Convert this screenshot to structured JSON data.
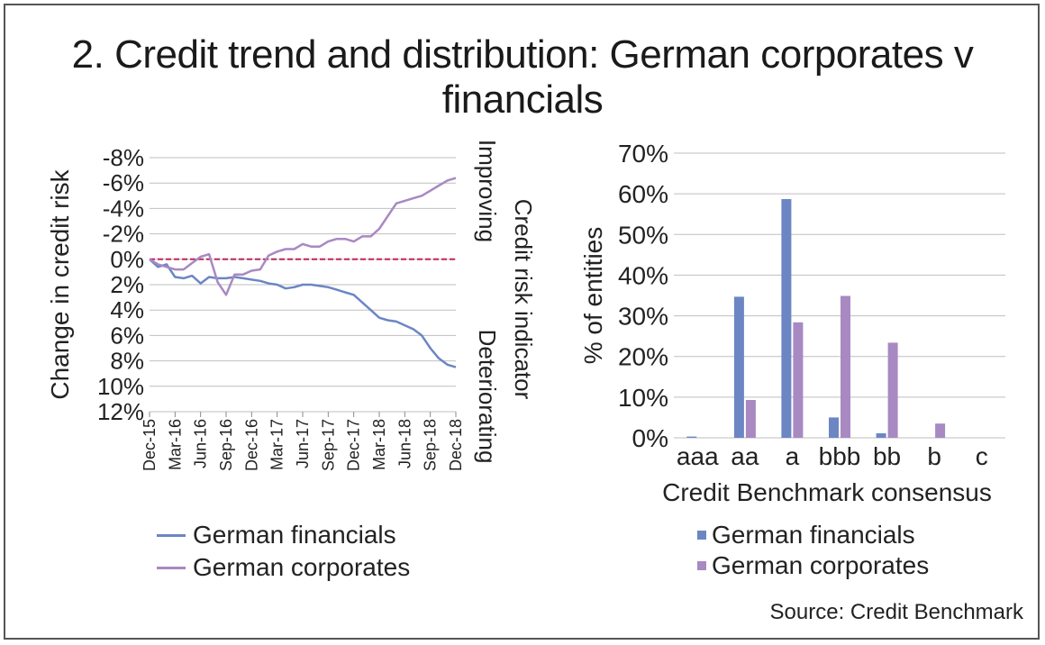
{
  "title": "2. Credit trend and distribution: German corporates v financials",
  "source": "Source: Credit Benchmark",
  "colors": {
    "financials": "#6c86c4",
    "corporates": "#a889c2",
    "zero_line": "#c0245d",
    "grid": "#bfbfbf"
  },
  "chart_data": [
    {
      "type": "line",
      "ylabel": "Change in credit risk",
      "right_label_top": "Improving",
      "right_label_center": "Credit risk indicator",
      "right_label_bottom": "Deteriorating",
      "ylim": [
        -8,
        12
      ],
      "y_inverted": true,
      "ytick_labels": [
        "-8%",
        "-6%",
        "-4%",
        "-2%",
        "0%",
        "2%",
        "4%",
        "6%",
        "8%",
        "10%",
        "12%"
      ],
      "xtick_labels": [
        "Dec-15",
        "Mar-16",
        "Jun-16",
        "Sep-16",
        "Dec-16",
        "Mar-17",
        "Jun-17",
        "Sep-17",
        "Dec-17",
        "Mar-18",
        "Jun-18",
        "Sep-18",
        "Dec-18"
      ],
      "x_months": [
        0,
        36
      ],
      "series": [
        {
          "name": "German financials",
          "x": [
            0,
            1,
            2,
            3,
            4,
            5,
            6,
            7,
            8,
            9,
            10,
            11,
            12,
            13,
            14,
            15,
            16,
            17,
            18,
            19,
            20,
            21,
            22,
            23,
            24,
            25,
            26,
            27,
            28,
            29,
            30,
            31,
            32,
            33,
            34,
            35,
            36
          ],
          "values": [
            0.0,
            0.6,
            0.4,
            1.4,
            1.5,
            1.3,
            1.9,
            1.4,
            1.5,
            1.5,
            1.4,
            1.5,
            1.6,
            1.7,
            1.9,
            2.0,
            2.3,
            2.2,
            2.0,
            2.0,
            2.1,
            2.2,
            2.4,
            2.6,
            2.8,
            3.4,
            4.0,
            4.6,
            4.8,
            4.9,
            5.2,
            5.5,
            6.0,
            7.0,
            7.8,
            8.3,
            8.5
          ]
        },
        {
          "name": "German corporates",
          "x": [
            0,
            1,
            2,
            3,
            4,
            5,
            6,
            7,
            8,
            9,
            10,
            11,
            12,
            13,
            14,
            15,
            16,
            17,
            18,
            19,
            20,
            21,
            22,
            23,
            24,
            25,
            26,
            27,
            28,
            29,
            30,
            31,
            32,
            33,
            34,
            35,
            36
          ],
          "values": [
            0.0,
            0.4,
            0.6,
            0.8,
            0.8,
            0.3,
            -0.2,
            -0.4,
            1.8,
            2.8,
            1.2,
            1.2,
            0.9,
            0.8,
            -0.3,
            -0.6,
            -0.8,
            -0.8,
            -1.2,
            -1.0,
            -1.0,
            -1.4,
            -1.6,
            -1.6,
            -1.4,
            -1.8,
            -1.8,
            -2.4,
            -3.4,
            -4.4,
            -4.6,
            -4.8,
            -5.0,
            -5.4,
            -5.8,
            -6.2,
            -6.4
          ]
        }
      ]
    },
    {
      "type": "bar",
      "title": "",
      "xlabel": "Credit Benchmark consensus",
      "ylabel": "% of entities",
      "ylim": [
        0,
        70
      ],
      "ytick_labels": [
        "0%",
        "10%",
        "20%",
        "30%",
        "40%",
        "50%",
        "60%",
        "70%"
      ],
      "categories": [
        "aaa",
        "aa",
        "a",
        "bbb",
        "bb",
        "b",
        "c"
      ],
      "series": [
        {
          "name": "German financials",
          "values": [
            0.3,
            34.7,
            58.7,
            5.0,
            1.1,
            0.0,
            0.0
          ]
        },
        {
          "name": "German corporates",
          "values": [
            0.0,
            9.3,
            28.4,
            34.9,
            23.4,
            3.5,
            0.0
          ]
        }
      ]
    }
  ]
}
